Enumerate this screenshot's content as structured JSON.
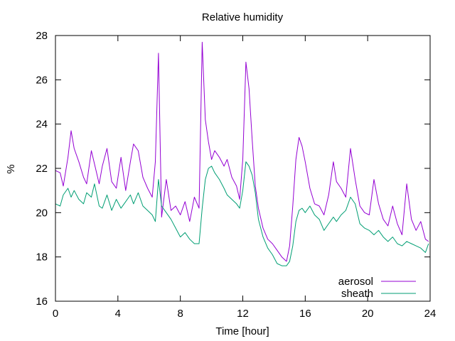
{
  "chart_data": {
    "type": "line",
    "title": "Relative humidity",
    "xlabel": "Time [hour]",
    "ylabel": "%",
    "xlim": [
      0,
      24
    ],
    "ylim": [
      16,
      28
    ],
    "xticks": [
      0,
      4,
      8,
      12,
      16,
      20,
      24
    ],
    "yticks": [
      16,
      18,
      20,
      22,
      24,
      26,
      28
    ],
    "grid": false,
    "legend_position": "bottom-right",
    "series": [
      {
        "name": "aerosol",
        "color": "#9400d3",
        "x": [
          0,
          0.3,
          0.5,
          0.8,
          1.0,
          1.2,
          1.5,
          1.8,
          2.0,
          2.3,
          2.5,
          2.8,
          3.0,
          3.3,
          3.6,
          3.9,
          4.2,
          4.5,
          4.8,
          5.0,
          5.3,
          5.6,
          5.9,
          6.2,
          6.4,
          6.6,
          6.8,
          7.1,
          7.4,
          7.7,
          8.0,
          8.3,
          8.6,
          8.9,
          9.2,
          9.4,
          9.6,
          9.8,
          10.0,
          10.2,
          10.5,
          10.8,
          11.0,
          11.3,
          11.6,
          11.8,
          12.0,
          12.2,
          12.4,
          12.6,
          12.8,
          13.0,
          13.3,
          13.6,
          13.9,
          14.2,
          14.5,
          14.8,
          15.0,
          15.2,
          15.4,
          15.6,
          15.8,
          16.0,
          16.3,
          16.6,
          16.9,
          17.2,
          17.5,
          17.8,
          18.0,
          18.3,
          18.6,
          18.9,
          19.2,
          19.5,
          19.8,
          20.1,
          20.4,
          20.7,
          21.0,
          21.3,
          21.6,
          21.9,
          22.2,
          22.5,
          22.8,
          23.1,
          23.4,
          23.7,
          23.9
        ],
        "y": [
          21.9,
          21.8,
          21.2,
          22.5,
          23.7,
          22.9,
          22.3,
          21.6,
          21.3,
          22.8,
          22.2,
          21.3,
          22.1,
          22.9,
          21.4,
          21.1,
          22.5,
          21.0,
          22.3,
          23.1,
          22.8,
          21.6,
          21.1,
          20.7,
          22.3,
          27.2,
          19.8,
          21.5,
          20.1,
          20.3,
          19.9,
          20.5,
          19.6,
          20.7,
          20.2,
          27.7,
          24.2,
          23.2,
          22.4,
          22.8,
          22.5,
          22.1,
          22.4,
          21.6,
          21.2,
          20.6,
          22.4,
          26.8,
          25.6,
          23.3,
          21.2,
          20.2,
          19.3,
          18.8,
          18.6,
          18.3,
          18.0,
          17.8,
          18.5,
          20.3,
          22.4,
          23.4,
          23.0,
          22.3,
          21.1,
          20.4,
          20.3,
          19.9,
          20.8,
          22.3,
          21.4,
          21.1,
          20.7,
          22.9,
          21.5,
          20.3,
          20.0,
          19.9,
          21.5,
          20.4,
          19.7,
          19.4,
          20.3,
          19.5,
          19.0,
          21.3,
          19.7,
          19.2,
          19.6,
          18.8,
          18.7
        ]
      },
      {
        "name": "sheath",
        "color": "#009e73",
        "x": [
          0,
          0.3,
          0.5,
          0.8,
          1.0,
          1.2,
          1.5,
          1.8,
          2.0,
          2.3,
          2.5,
          2.8,
          3.0,
          3.3,
          3.6,
          3.9,
          4.2,
          4.5,
          4.8,
          5.0,
          5.3,
          5.6,
          5.9,
          6.2,
          6.4,
          6.6,
          6.8,
          7.1,
          7.4,
          7.7,
          8.0,
          8.3,
          8.6,
          8.9,
          9.2,
          9.4,
          9.6,
          9.8,
          10.0,
          10.2,
          10.5,
          10.8,
          11.0,
          11.3,
          11.6,
          11.8,
          12.0,
          12.2,
          12.4,
          12.6,
          12.8,
          13.0,
          13.3,
          13.6,
          13.9,
          14.2,
          14.5,
          14.8,
          15.0,
          15.2,
          15.4,
          15.6,
          15.8,
          16.0,
          16.3,
          16.6,
          16.9,
          17.2,
          17.5,
          17.8,
          18.0,
          18.3,
          18.6,
          18.9,
          19.2,
          19.5,
          19.8,
          20.1,
          20.4,
          20.7,
          21.0,
          21.3,
          21.6,
          21.9,
          22.2,
          22.5,
          22.8,
          23.1,
          23.4,
          23.7,
          23.9
        ],
        "y": [
          20.4,
          20.3,
          20.8,
          21.1,
          20.7,
          21.0,
          20.6,
          20.4,
          20.9,
          20.7,
          21.3,
          20.3,
          20.2,
          20.8,
          20.1,
          20.6,
          20.2,
          20.5,
          20.8,
          20.4,
          20.9,
          20.3,
          20.1,
          19.9,
          19.6,
          21.5,
          20.3,
          20.0,
          19.7,
          19.3,
          18.9,
          19.1,
          18.8,
          18.6,
          18.6,
          20.2,
          21.5,
          22.0,
          22.1,
          21.8,
          21.5,
          21.1,
          20.8,
          20.6,
          20.4,
          20.2,
          21.0,
          22.3,
          22.1,
          21.7,
          20.9,
          19.7,
          18.9,
          18.4,
          18.1,
          17.7,
          17.6,
          17.6,
          17.8,
          18.5,
          19.6,
          20.1,
          20.2,
          20.0,
          20.3,
          19.9,
          19.7,
          19.2,
          19.5,
          19.8,
          19.6,
          19.9,
          20.1,
          20.7,
          20.4,
          19.5,
          19.3,
          19.2,
          19.0,
          19.2,
          18.9,
          18.7,
          18.9,
          18.6,
          18.5,
          18.7,
          18.6,
          18.5,
          18.4,
          18.2,
          18.6
        ]
      }
    ]
  }
}
